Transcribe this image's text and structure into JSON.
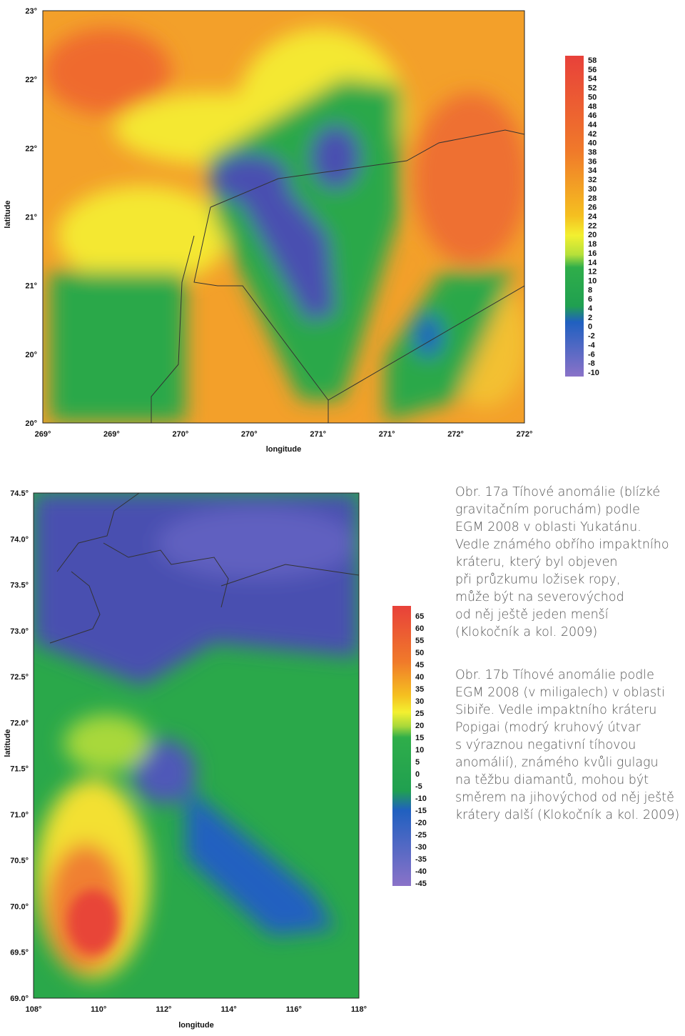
{
  "map_a": {
    "y_label": "latitude",
    "x_label": "longitude",
    "lat_ticks": [
      "23°",
      "22°",
      "22°",
      "21°",
      "21°",
      "20°",
      "20°"
    ],
    "lon_ticks": [
      "269°",
      "269°",
      "270°",
      "270°",
      "271°",
      "271°",
      "272°",
      "272°"
    ],
    "colorbar": [
      58,
      56,
      54,
      52,
      50,
      48,
      46,
      44,
      42,
      40,
      38,
      36,
      34,
      32,
      30,
      28,
      26,
      24,
      22,
      20,
      18,
      16,
      14,
      12,
      10,
      8,
      6,
      4,
      2,
      0,
      -2,
      -4,
      -6,
      -8,
      -10
    ]
  },
  "map_b": {
    "y_label": "latitude",
    "x_label": "longitude",
    "lat_ticks": [
      "74.5°",
      "74.0°",
      "73.5°",
      "73.0°",
      "72.5°",
      "72.0°",
      "71.5°",
      "71.0°",
      "70.5°",
      "70.0°",
      "69.5°",
      "69.0°"
    ],
    "lon_ticks": [
      "108°",
      "110°",
      "112°",
      "114°",
      "116°",
      "118°"
    ],
    "colorbar": [
      65,
      60,
      55,
      50,
      45,
      40,
      35,
      30,
      25,
      20,
      15,
      10,
      5,
      0,
      -5,
      -10,
      -15,
      -20,
      -25,
      -30,
      -35,
      -40,
      -45
    ]
  },
  "captions": [
    [
      "Obr. 17a  Tíhové anomálie (blízké",
      "gravitačním poruchám) podle",
      "EGM 2008 v oblasti Yukatánu.",
      "Vedle známého obřího impaktního",
      "kráteru, který byl objeven",
      "při průzkumu ložisek ropy,",
      "může být na severovýchod",
      "od něj ještě jeden menší",
      "(Klokočník a kol. 2009)"
    ],
    [
      "Obr. 17b  Tíhové anomálie podle",
      "EGM 2008 (v miligalech) v oblasti",
      "Sibiře. Vedle impaktního kráteru",
      "Popigai (modrý kruhový útvar",
      "s výraznou negativní tíhovou",
      "anomálií), známého kvůli gulagu",
      "na těžbu diamantů, mohou být",
      "směrem na jihovýchod od něj ještě",
      "krátery další (Klokočník a kol. 2009)"
    ]
  ]
}
